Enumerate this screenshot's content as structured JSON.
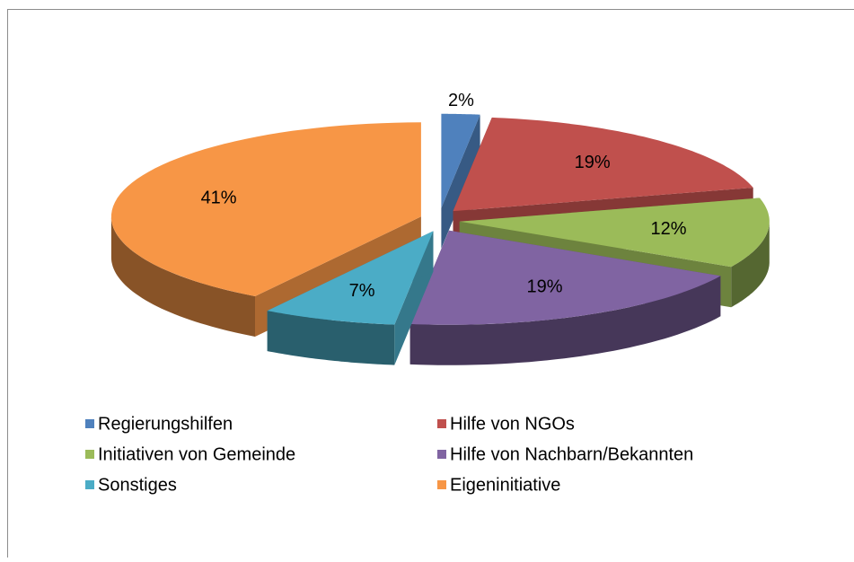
{
  "chart_data": {
    "type": "pie",
    "categories": [
      "Regierungshilfen",
      "Hilfe von NGOs",
      "Initiativen von Gemeinde",
      "Hilfe von Nachbarn/Bekannten",
      "Sonstiges",
      "Eigeninitiative"
    ],
    "values": [
      2,
      19,
      12,
      19,
      7,
      41
    ],
    "value_labels": [
      "2%",
      "19%",
      "12%",
      "19%",
      "7%",
      "41%"
    ],
    "colors": [
      "#4f81bd",
      "#c0504d",
      "#9bbb59",
      "#8064a2",
      "#4bacc6",
      "#f79646"
    ],
    "legend": "bottom"
  }
}
